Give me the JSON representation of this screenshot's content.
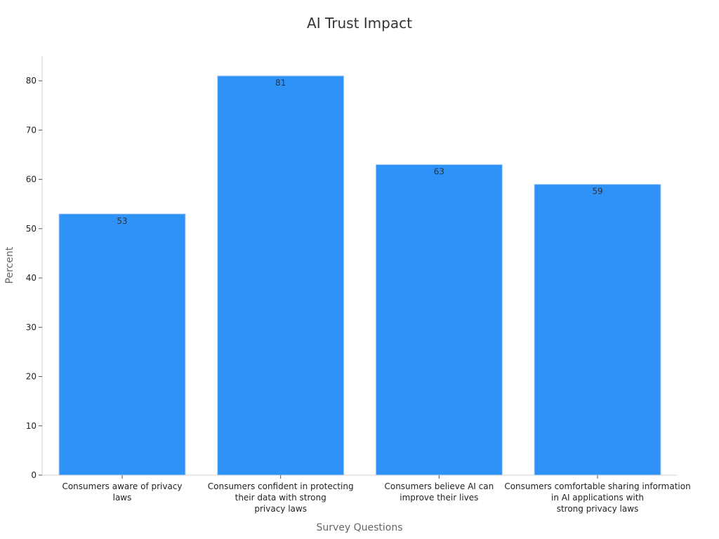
{
  "chart_data": {
    "type": "bar",
    "title": "AI Trust Impact",
    "xlabel": "Survey Questions",
    "ylabel": "Percent",
    "ylim": [
      0,
      85
    ],
    "yticks": [
      0,
      10,
      20,
      30,
      40,
      50,
      60,
      70,
      80
    ],
    "grid": false,
    "categories": [
      [
        "Consumers aware of privacy",
        "laws"
      ],
      [
        "Consumers confident in protecting",
        "their data with strong",
        "privacy laws"
      ],
      [
        "Consumers believe AI can",
        "improve their lives"
      ],
      [
        "Consumers comfortable sharing information",
        "in AI applications with",
        "strong privacy laws"
      ]
    ],
    "values": [
      53,
      81,
      63,
      59
    ],
    "bar_color": "#2f92f7",
    "bar_edge_color": "#b7d3f5"
  }
}
